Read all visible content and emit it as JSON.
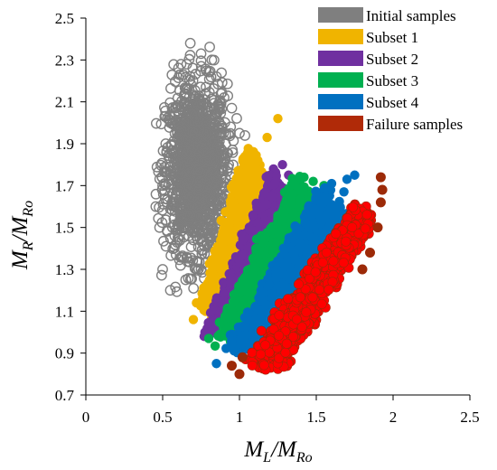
{
  "chart_data": {
    "type": "scatter",
    "xlabel": {
      "main": "M",
      "sub": "L",
      "sep": "/M",
      "sub2": "Ro"
    },
    "ylabel": {
      "main": "M",
      "sub": "R",
      "sep": "/M",
      "sub2": "Ro"
    },
    "xlim": [
      0,
      2.5
    ],
    "ylim": [
      0.7,
      2.5
    ],
    "xticks": [
      0,
      0.5,
      1,
      1.5,
      2,
      2.5
    ],
    "xtick_labels": [
      "0",
      "0.5",
      "1",
      "1.5",
      "2",
      "2.5"
    ],
    "yticks": [
      0.7,
      0.9,
      1.1,
      1.3,
      1.5,
      1.7,
      1.9,
      2.1,
      2.3,
      2.5
    ],
    "ytick_labels": [
      "0.7",
      "0.9",
      "1.1",
      "1.3",
      "1.5",
      "1.7",
      "1.9",
      "2.1",
      "2.3",
      "2.5"
    ],
    "grid": false,
    "legend_position": "top-right",
    "series": [
      {
        "name": "Initial samples",
        "color": "#7f7f7f",
        "marker": "hollow-circle",
        "center": [
          0.72,
          1.78
        ],
        "spread": [
          0.1,
          0.2
        ],
        "points": [
          [
            0.68,
            2.38
          ],
          [
            0.75,
            2.33
          ],
          [
            0.82,
            2.3
          ],
          [
            0.62,
            2.28
          ],
          [
            0.85,
            2.22
          ],
          [
            0.9,
            2.12
          ],
          [
            0.95,
            2.07
          ],
          [
            0.55,
            2.0
          ],
          [
            0.52,
            1.9
          ],
          [
            0.5,
            1.7
          ],
          [
            0.48,
            1.5
          ],
          [
            0.5,
            1.3
          ],
          [
            0.55,
            1.2
          ],
          [
            0.65,
            1.25
          ],
          [
            0.75,
            1.3
          ],
          [
            0.88,
            1.6
          ],
          [
            0.93,
            1.8
          ],
          [
            1.0,
            1.95
          ]
        ]
      },
      {
        "name": "Subset 1",
        "color": "#f0b400",
        "marker": "filled-circle",
        "band": {
          "left": [
            [
              0.74,
              1.12
            ],
            [
              1.05,
              1.88
            ]
          ],
          "right": [
            [
              0.95,
              1.12
            ],
            [
              1.2,
              1.68
            ]
          ]
        },
        "points": [
          [
            0.7,
            1.06
          ],
          [
            0.72,
            1.14
          ],
          [
            1.25,
            2.02
          ],
          [
            1.18,
            1.93
          ],
          [
            1.12,
            1.82
          ],
          [
            1.22,
            1.55
          ]
        ]
      },
      {
        "name": "Subset 2",
        "color": "#7030a0",
        "marker": "filled-circle",
        "band": {
          "left": [
            [
              0.78,
              1.0
            ],
            [
              1.22,
              1.78
            ]
          ],
          "right": [
            [
              1.05,
              1.02
            ],
            [
              1.32,
              1.58
            ]
          ]
        },
        "points": [
          [
            0.77,
            0.98
          ],
          [
            1.28,
            1.8
          ],
          [
            1.32,
            1.75
          ],
          [
            1.35,
            1.7
          ],
          [
            1.37,
            1.62
          ]
        ]
      },
      {
        "name": "Subset 3",
        "color": "#00b050",
        "marker": "filled-circle",
        "band": {
          "left": [
            [
              0.82,
              0.96
            ],
            [
              1.38,
              1.75
            ]
          ],
          "right": [
            [
              1.12,
              0.96
            ],
            [
              1.48,
              1.58
            ]
          ]
        },
        "points": [
          [
            0.8,
            0.97
          ],
          [
            1.42,
            1.74
          ],
          [
            1.48,
            1.72
          ],
          [
            1.55,
            1.7
          ],
          [
            1.52,
            1.64
          ]
        ]
      },
      {
        "name": "Subset 4",
        "color": "#0070c0",
        "marker": "filled-circle",
        "band": {
          "left": [
            [
              0.92,
              0.92
            ],
            [
              1.55,
              1.7
            ]
          ],
          "right": [
            [
              1.2,
              0.92
            ],
            [
              1.68,
              1.55
            ]
          ]
        },
        "points": [
          [
            0.85,
            0.85
          ],
          [
            1.6,
            1.71
          ],
          [
            1.7,
            1.73
          ],
          [
            1.75,
            1.75
          ],
          [
            1.68,
            1.67
          ]
        ]
      },
      {
        "name": "Failure samples",
        "color": "#ff0000",
        "edge_color": "#9c2a08",
        "marker": "filled-circle",
        "band": {
          "left": [
            [
              1.05,
              0.86
            ],
            [
              1.75,
              1.6
            ]
          ],
          "right": [
            [
              1.3,
              0.85
            ],
            [
              1.88,
              1.55
            ]
          ]
        },
        "points": [
          [
            1.0,
            0.8
          ],
          [
            0.95,
            0.84
          ],
          [
            1.02,
            0.88
          ],
          [
            1.92,
            1.74
          ],
          [
            1.93,
            1.68
          ],
          [
            1.9,
            1.5
          ],
          [
            1.85,
            1.38
          ],
          [
            1.8,
            1.3
          ],
          [
            1.92,
            1.62
          ]
        ]
      }
    ]
  }
}
